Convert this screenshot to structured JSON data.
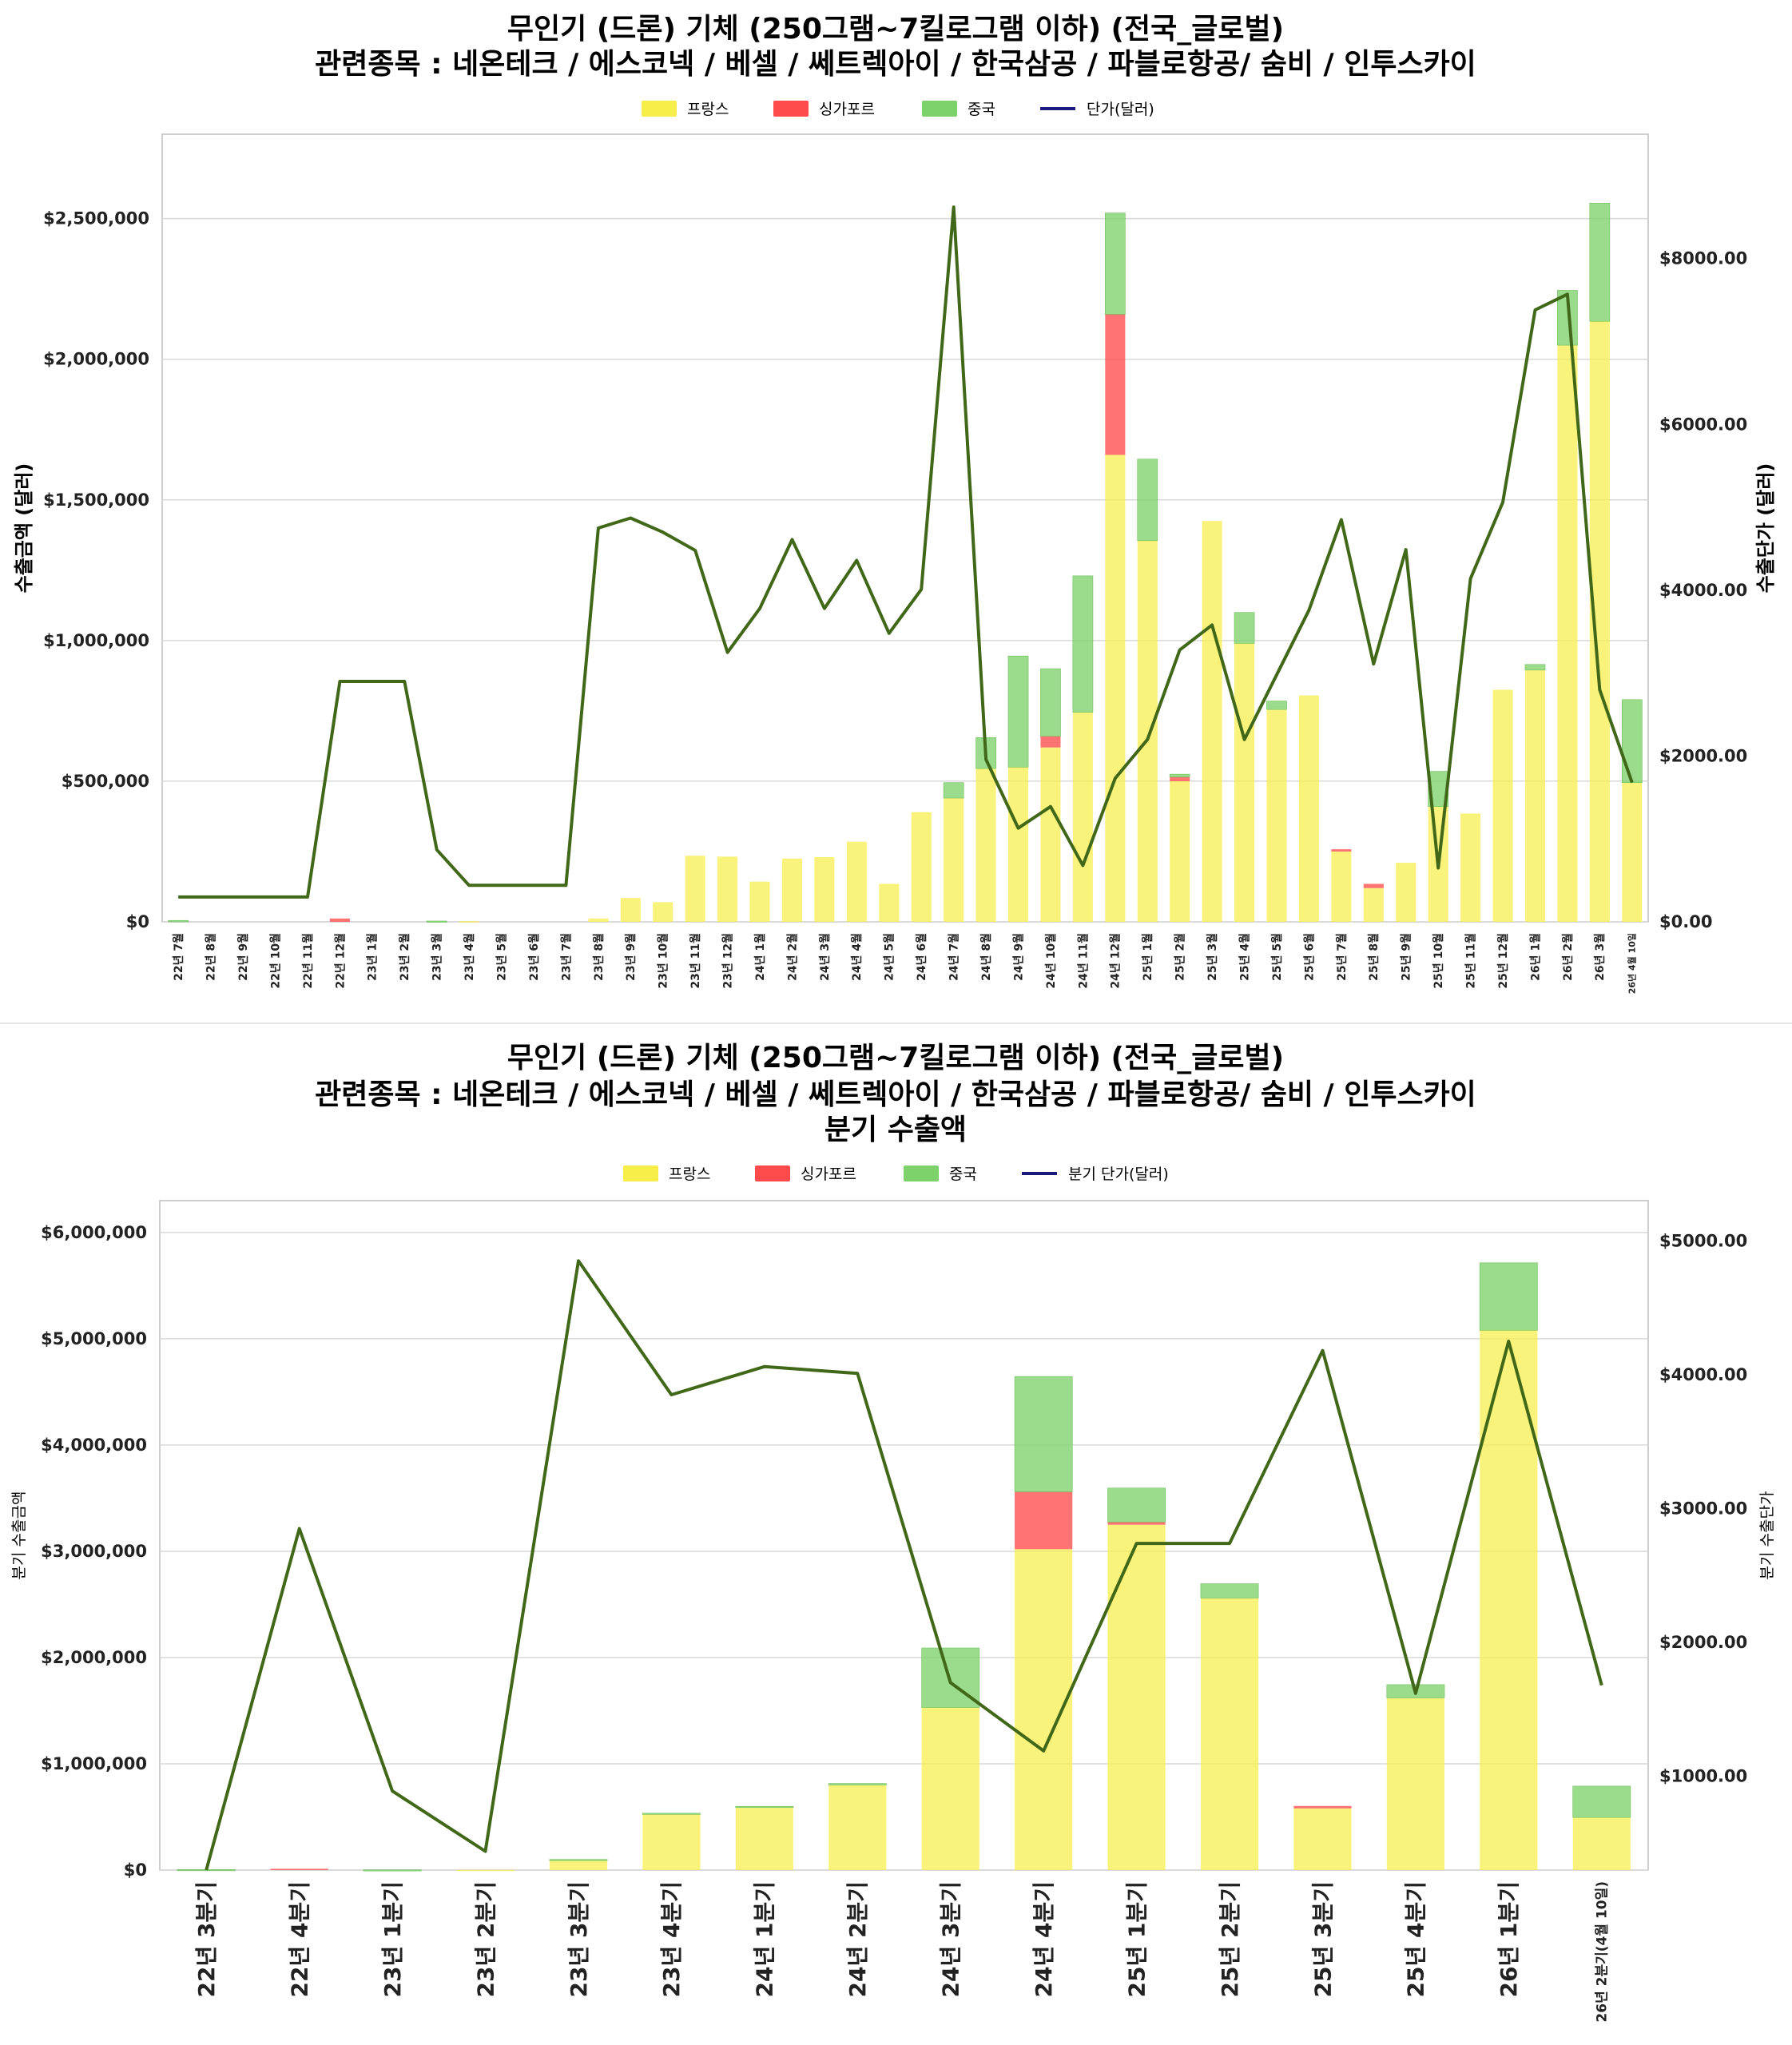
{
  "colors": {
    "france": "#f7ee4a",
    "singapore": "#ff4b4b",
    "china": "#7ed26b",
    "line": "#406818",
    "legend_line": "#1b1a7a",
    "grid": "#d9d9d9",
    "axis": "#bdbdbd",
    "separator": "#e6e6e6"
  },
  "chart_data": [
    {
      "type": "bar",
      "stacked": true,
      "title": "무인기 (드론) 기체 (250그램~7킬로그램 이하) (전국_글로벌)",
      "subtitle": "관련종목 : 네온테크 / 에스코넥 / 베셀 / 쎄트렉아이 / 한국삼공 / 파블로항공/ 숨비 / 인투스카이",
      "legend": [
        "프랑스",
        "싱가포르",
        "중국",
        "단가(달러)"
      ],
      "ylabel": "수출금액 (달러)",
      "y2label": "수출단가 (달러)",
      "ylim": [
        0,
        2800000
      ],
      "y2lim": [
        0,
        9500
      ],
      "yticks": [
        "$0",
        "$500,000",
        "$1,000,000",
        "$1,500,000",
        "$2,000,000",
        "$2,500,000"
      ],
      "y2ticks": [
        "$0.00",
        "$2000.00",
        "$4000.00",
        "$6000.00",
        "$8000.00"
      ],
      "categories": [
        "22년 7월",
        "22년 8월",
        "22년 9월",
        "22년 10월",
        "22년 11월",
        "22년 12월",
        "23년 1월",
        "23년 2월",
        "23년 3월",
        "23년 4월",
        "23년 5월",
        "23년 6월",
        "23년 7월",
        "23년 8월",
        "23년 9월",
        "23년 10월",
        "23년 11월",
        "23년 12월",
        "24년 1월",
        "24년 2월",
        "24년 3월",
        "24년 4월",
        "24년 5월",
        "24년 6월",
        "24년 7월",
        "24년 8월",
        "24년 9월",
        "24년 10월",
        "24년 11월",
        "24년 12월",
        "25년 1월",
        "25년 2월",
        "25년 3월",
        "25년 4월",
        "25년 5월",
        "25년 6월",
        "25년 7월",
        "25년 8월",
        "25년 9월",
        "25년 10월",
        "25년 11월",
        "25년 12월",
        "26년 1월",
        "26년 2월",
        "26년 3월",
        "26년 4월 10일"
      ],
      "series": [
        {
          "name": "프랑스",
          "values": [
            0,
            0,
            0,
            0,
            0,
            0,
            0,
            0,
            0,
            2000,
            0,
            0,
            0,
            12000,
            85000,
            70000,
            235000,
            232000,
            143000,
            225000,
            230000,
            285000,
            135000,
            390000,
            440000,
            545000,
            550000,
            620000,
            745000,
            1660000,
            1355000,
            500000,
            1425000,
            990000,
            755000,
            805000,
            250000,
            120000,
            210000,
            410000,
            385000,
            825000,
            895000,
            2050000,
            2135000,
            495000
          ]
        },
        {
          "name": "싱가포르",
          "values": [
            0,
            0,
            0,
            0,
            0,
            12000,
            0,
            0,
            0,
            0,
            0,
            0,
            0,
            0,
            0,
            0,
            0,
            0,
            0,
            0,
            0,
            0,
            0,
            0,
            0,
            0,
            0,
            40000,
            0,
            500000,
            0,
            15000,
            0,
            0,
            0,
            0,
            8000,
            15000,
            0,
            0,
            0,
            0,
            0,
            0,
            0,
            0
          ]
        },
        {
          "name": "중국",
          "values": [
            5000,
            0,
            0,
            0,
            0,
            0,
            0,
            0,
            3000,
            0,
            0,
            0,
            0,
            0,
            0,
            0,
            0,
            0,
            0,
            0,
            0,
            0,
            0,
            0,
            55000,
            110000,
            395000,
            240000,
            485000,
            360000,
            290000,
            10000,
            0,
            110000,
            30000,
            0,
            0,
            0,
            0,
            125000,
            0,
            0,
            20000,
            195000,
            420000,
            295000
          ]
        },
        {
          "name": "단가(달러)",
          "axis": "right",
          "values": [
            300,
            300,
            300,
            300,
            300,
            2900,
            2900,
            2900,
            870,
            440,
            440,
            440,
            440,
            4750,
            4870,
            4700,
            4480,
            3250,
            3780,
            4610,
            3780,
            4360,
            3480,
            4010,
            8620,
            1960,
            1130,
            1390,
            680,
            1730,
            2200,
            3280,
            3580,
            2200,
            2980,
            3760,
            4850,
            3110,
            4490,
            650,
            4140,
            5060,
            7380,
            7570,
            2800,
            1680
          ]
        }
      ]
    },
    {
      "type": "bar",
      "stacked": true,
      "title": "무인기 (드론) 기체 (250그램~7킬로그램 이하) (전국_글로벌)",
      "subtitle": "관련종목 : 네온테크 / 에스코넥 / 베셀 / 쎄트렉아이 / 한국삼공 / 파블로항공/ 숨비 / 인투스카이",
      "subtitle2": "분기 수출액",
      "legend": [
        "프랑스",
        "싱가포르",
        "중국",
        "분기 단가(달러)"
      ],
      "ylabel": "분기 수출금액",
      "y2label": "분기 수출단가",
      "ylim": [
        0,
        6300000
      ],
      "y2lim": [
        300,
        5300
      ],
      "yticks": [
        "$0",
        "$1,000,000",
        "$2,000,000",
        "$3,000,000",
        "$4,000,000",
        "$5,000,000",
        "$6,000,000"
      ],
      "y2ticks": [
        "$1000.00",
        "$2000.00",
        "$3000.00",
        "$4000.00",
        "$5000.00"
      ],
      "categories": [
        "22년 3분기",
        "22년 4분기",
        "23년 1분기",
        "23년 2분기",
        "23년 3분기",
        "23년 4분기",
        "24년 1분기",
        "24년 2분기",
        "24년 3분기",
        "24년 4분기",
        "25년 1분기",
        "25년 2분기",
        "25년 3분기",
        "25년 4분기",
        "26년 1분기",
        "26년 2분기(4월 10일)"
      ],
      "series": [
        {
          "name": "프랑스",
          "values": [
            0,
            0,
            0,
            2000,
            95000,
            525000,
            590000,
            800000,
            1530000,
            3020000,
            3250000,
            2560000,
            580000,
            1620000,
            5080000,
            495000
          ]
        },
        {
          "name": "싱가포르",
          "values": [
            0,
            12000,
            0,
            0,
            0,
            0,
            0,
            0,
            0,
            540000,
            25000,
            0,
            23000,
            0,
            0,
            0
          ]
        },
        {
          "name": "중국",
          "values": [
            5000,
            0,
            3000,
            0,
            5000,
            10000,
            10000,
            15000,
            560000,
            1085000,
            320000,
            135000,
            0,
            125000,
            635000,
            295000
          ]
        },
        {
          "name": "분기 단가(달러)",
          "axis": "right",
          "values": [
            300,
            2850,
            890,
            440,
            4850,
            3850,
            4060,
            4010,
            1700,
            1190,
            2740,
            2740,
            4180,
            1620,
            4250,
            1680
          ]
        }
      ]
    }
  ]
}
